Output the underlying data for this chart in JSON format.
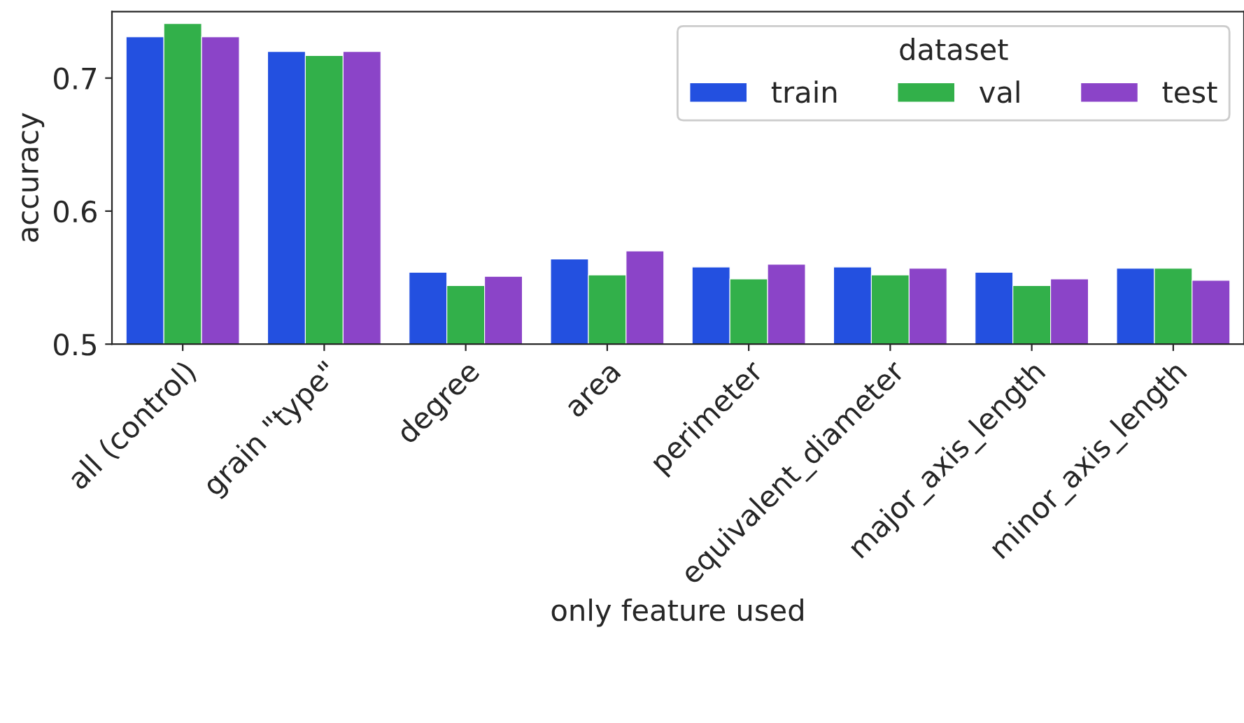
{
  "chart_data": {
    "type": "bar",
    "xlabel": "only feature used",
    "ylabel": "accuracy",
    "legend_title": "dataset",
    "legend": "top right",
    "categories": [
      "all (control)",
      "grain \"type\"",
      "degree",
      "area",
      "perimeter",
      "equivalent_diameter",
      "major_axis_length",
      "minor_axis_length"
    ],
    "series": [
      {
        "name": "train",
        "color": "#2350e0",
        "values": [
          0.731,
          0.72,
          0.554,
          0.564,
          0.558,
          0.558,
          0.554,
          0.557
        ]
      },
      {
        "name": "val",
        "color": "#32b04a",
        "values": [
          0.741,
          0.717,
          0.544,
          0.552,
          0.549,
          0.552,
          0.544,
          0.557
        ]
      },
      {
        "name": "test",
        "color": "#8b44c8",
        "values": [
          0.731,
          0.72,
          0.551,
          0.57,
          0.56,
          0.557,
          0.549,
          0.548
        ]
      }
    ],
    "ylim": [
      0.5,
      0.75
    ],
    "yticks": [
      0.5,
      0.6,
      0.7
    ],
    "grid": false
  }
}
